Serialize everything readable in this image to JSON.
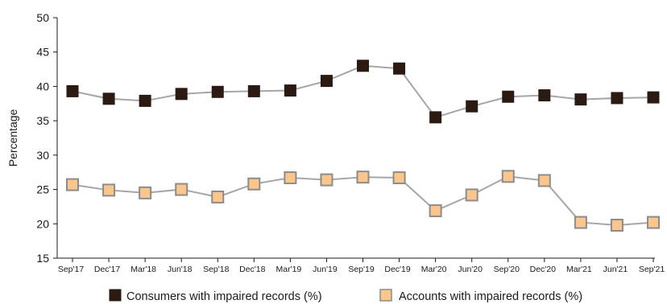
{
  "chart_data": {
    "type": "line",
    "title": "",
    "xlabel": "",
    "ylabel": "Percentage",
    "ylim": [
      15,
      50
    ],
    "yticks": [
      15,
      20,
      25,
      30,
      35,
      40,
      45,
      50
    ],
    "categories": [
      "Sep'17",
      "Dec'17",
      "Mar'18",
      "Jun'18",
      "Sep'18",
      "Dec'18",
      "Mar'19",
      "Jun'19",
      "Sep'19",
      "Dec'19",
      "Mar'20",
      "Jun'20",
      "Sep'20",
      "Dec'20",
      "Mar'21",
      "Jun'21",
      "Sep'21"
    ],
    "legend_position": "bottom",
    "grid": false,
    "series": [
      {
        "name": "Consumers with impaired records (%)",
        "marker_color": "#2a1a12",
        "line_color": "#a6a6a6",
        "values": [
          39.3,
          38.2,
          37.9,
          38.9,
          39.2,
          39.3,
          39.4,
          40.8,
          43.0,
          42.6,
          35.5,
          37.1,
          38.5,
          38.7,
          38.1,
          38.3,
          38.4
        ]
      },
      {
        "name": "Accounts with impaired records (%)",
        "marker_color": "#fbc68c",
        "line_color": "#a6a6a6",
        "values": [
          25.7,
          24.9,
          24.5,
          25.0,
          23.9,
          25.8,
          26.7,
          26.4,
          26.8,
          26.7,
          21.9,
          24.2,
          26.9,
          26.3,
          20.2,
          19.8,
          20.2
        ]
      }
    ]
  }
}
